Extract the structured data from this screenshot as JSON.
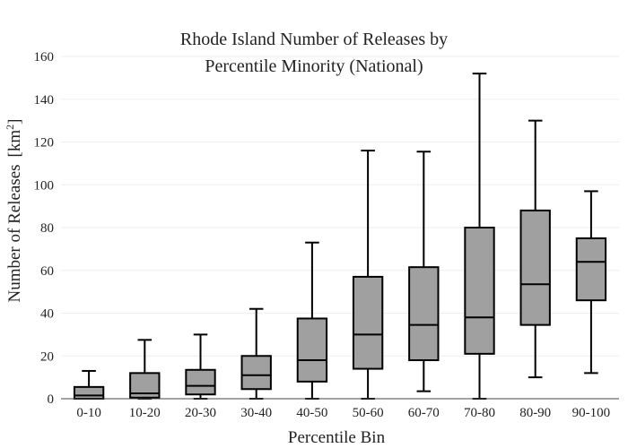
{
  "chart_data": {
    "type": "box",
    "title_lines": [
      "Rhode Island Number of Releases by",
      "Percentile Minority (National)"
    ],
    "xlabel": "Percentile Bin",
    "ylabel": "Number of Releases",
    "ylabel_unit_prefix": "[km",
    "ylabel_unit_sup": "2",
    "ylabel_unit_suffix": "]",
    "ylim": [
      0,
      160
    ],
    "yticks": [
      0,
      20,
      40,
      60,
      80,
      100,
      120,
      140,
      160
    ],
    "grid": true,
    "colors": {
      "box_fill": "#a0a0a0",
      "box_stroke": "#000000",
      "grid": "#eeeeee"
    },
    "categories": [
      "0-10",
      "10-20",
      "20-30",
      "30-40",
      "40-50",
      "50-60",
      "60-70",
      "70-80",
      "80-90",
      "90-100"
    ],
    "boxes": [
      {
        "category": "0-10",
        "min": 0,
        "q1": 0,
        "median": 1.5,
        "q3": 5.5,
        "max": 13
      },
      {
        "category": "10-20",
        "min": 0,
        "q1": 0.5,
        "median": 2.5,
        "q3": 12,
        "max": 27.5
      },
      {
        "category": "20-30",
        "min": 0,
        "q1": 2,
        "median": 6,
        "q3": 13.5,
        "max": 30
      },
      {
        "category": "30-40",
        "min": 0,
        "q1": 4.5,
        "median": 11,
        "q3": 20,
        "max": 42
      },
      {
        "category": "40-50",
        "min": 0,
        "q1": 8,
        "median": 18,
        "q3": 37.5,
        "max": 73
      },
      {
        "category": "50-60",
        "min": 0,
        "q1": 14,
        "median": 30,
        "q3": 57,
        "max": 116
      },
      {
        "category": "60-70",
        "min": 3.5,
        "q1": 18,
        "median": 34.5,
        "q3": 61.5,
        "max": 115.5
      },
      {
        "category": "70-80",
        "min": 0,
        "q1": 21,
        "median": 38,
        "q3": 80,
        "max": 152
      },
      {
        "category": "80-90",
        "min": 10,
        "q1": 34.5,
        "median": 53.5,
        "q3": 88,
        "max": 130
      },
      {
        "category": "90-100",
        "min": 12,
        "q1": 46,
        "median": 64,
        "q3": 75,
        "max": 97
      }
    ]
  }
}
